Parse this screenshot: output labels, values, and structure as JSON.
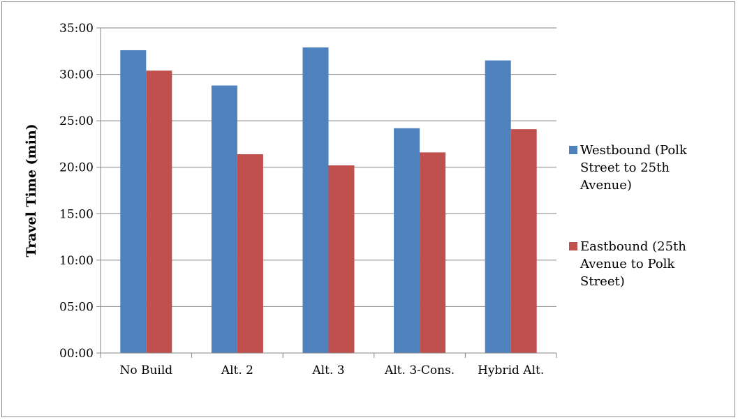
{
  "chart_data": {
    "type": "bar",
    "title": "",
    "xlabel": "",
    "ylabel": "Travel Time (min)",
    "categories": [
      "No Build",
      "Alt. 2",
      "Alt. 3",
      "Alt. 3-Cons.",
      "Hybrid Alt."
    ],
    "y_ticks": [
      "00:00",
      "05:00",
      "10:00",
      "15:00",
      "20:00",
      "25:00",
      "30:00",
      "35:00"
    ],
    "ylim": [
      0,
      35
    ],
    "grid": true,
    "legend_position": "right",
    "series": [
      {
        "name": "Westbound (Polk Street to 25th Avenue)",
        "legend_lines": [
          "Westbound (Polk",
          "Street to 25th",
          "Avenue)"
        ],
        "color": "#4F81BD",
        "values": [
          32.6,
          28.8,
          32.9,
          24.2,
          31.5
        ]
      },
      {
        "name": "Eastbound (25th Avenue to Polk Street)",
        "legend_lines": [
          "Eastbound (25th",
          "Avenue to Polk",
          "Street)"
        ],
        "color": "#C0504D",
        "values": [
          30.4,
          21.4,
          20.2,
          21.6,
          24.1
        ]
      }
    ]
  }
}
